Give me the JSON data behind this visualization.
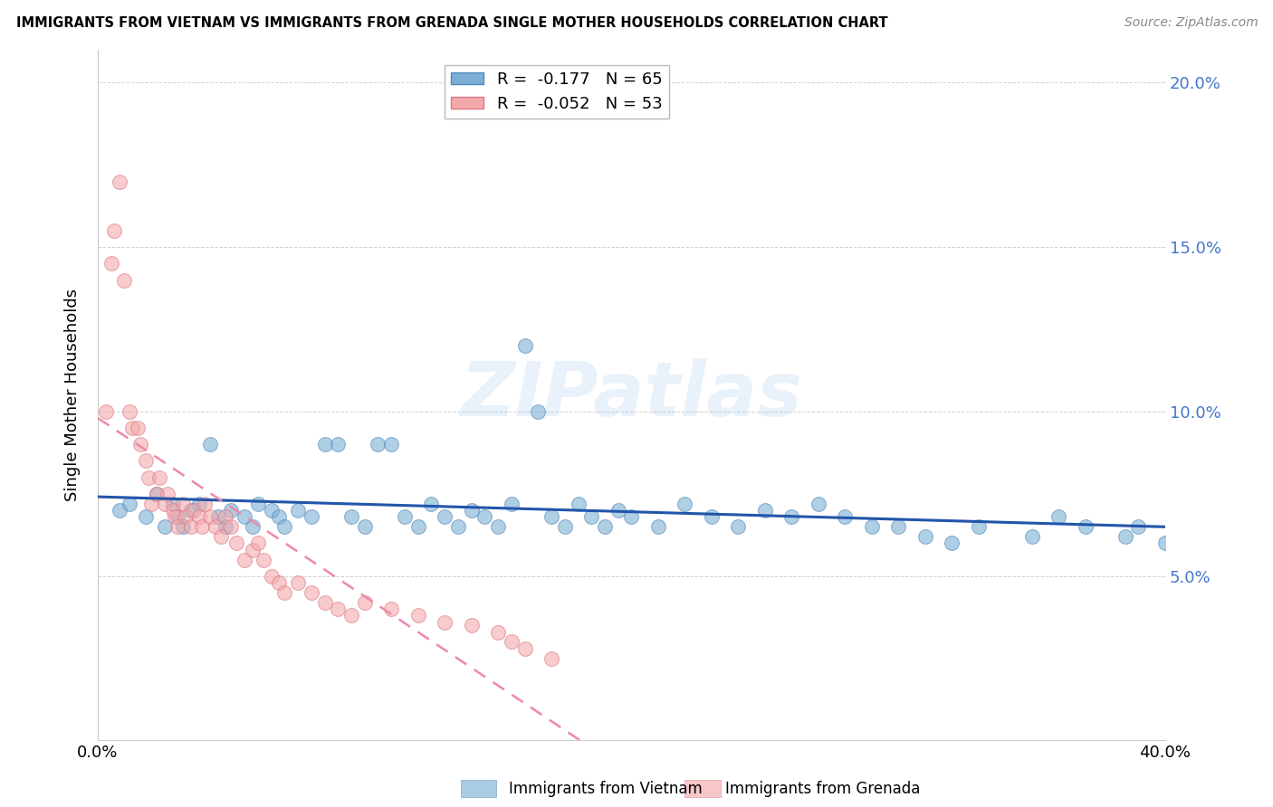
{
  "title": "IMMIGRANTS FROM VIETNAM VS IMMIGRANTS FROM GRENADA SINGLE MOTHER HOUSEHOLDS CORRELATION CHART",
  "source": "Source: ZipAtlas.com",
  "ylabel": "Single Mother Households",
  "y_ticks": [
    0.0,
    0.05,
    0.1,
    0.15,
    0.2
  ],
  "y_tick_labels_right": [
    "",
    "5.0%",
    "10.0%",
    "15.0%",
    "20.0%"
  ],
  "x_lim": [
    0.0,
    0.4
  ],
  "y_lim": [
    0.0,
    0.21
  ],
  "x_ticks": [
    0.0,
    0.1,
    0.2,
    0.3,
    0.4
  ],
  "x_tick_labels": [
    "0.0%",
    "",
    "",
    "",
    "40.0%"
  ],
  "vietnam_color": "#7BAFD4",
  "vietnam_edge_color": "#5588BB",
  "grenada_color": "#F4AAAA",
  "grenada_edge_color": "#DD7788",
  "vietnam_line_color": "#2255AA",
  "grenada_line_color": "#EE88AA",
  "vietnam_R": -0.177,
  "vietnam_N": 65,
  "grenada_R": -0.052,
  "grenada_N": 53,
  "legend_label_vietnam": "Immigrants from Vietnam",
  "legend_label_grenada": "Immigrants from Grenada",
  "watermark": "ZIPatlas",
  "grid_color": "#CCCCCC",
  "vietnam_x": [
    0.008,
    0.012,
    0.018,
    0.022,
    0.025,
    0.028,
    0.03,
    0.032,
    0.035,
    0.038,
    0.042,
    0.045,
    0.048,
    0.05,
    0.055,
    0.058,
    0.06,
    0.065,
    0.068,
    0.07,
    0.075,
    0.08,
    0.085,
    0.09,
    0.095,
    0.1,
    0.105,
    0.11,
    0.115,
    0.12,
    0.125,
    0.13,
    0.135,
    0.14,
    0.145,
    0.15,
    0.155,
    0.16,
    0.165,
    0.17,
    0.175,
    0.18,
    0.185,
    0.19,
    0.195,
    0.2,
    0.21,
    0.22,
    0.23,
    0.24,
    0.25,
    0.26,
    0.27,
    0.28,
    0.29,
    0.3,
    0.31,
    0.32,
    0.33,
    0.35,
    0.36,
    0.37,
    0.385,
    0.39,
    0.4
  ],
  "vietnam_y": [
    0.07,
    0.072,
    0.068,
    0.075,
    0.065,
    0.072,
    0.068,
    0.065,
    0.07,
    0.072,
    0.09,
    0.068,
    0.065,
    0.07,
    0.068,
    0.065,
    0.072,
    0.07,
    0.068,
    0.065,
    0.07,
    0.068,
    0.09,
    0.09,
    0.068,
    0.065,
    0.09,
    0.09,
    0.068,
    0.065,
    0.072,
    0.068,
    0.065,
    0.07,
    0.068,
    0.065,
    0.072,
    0.12,
    0.1,
    0.068,
    0.065,
    0.072,
    0.068,
    0.065,
    0.07,
    0.068,
    0.065,
    0.072,
    0.068,
    0.065,
    0.07,
    0.068,
    0.072,
    0.068,
    0.065,
    0.065,
    0.062,
    0.06,
    0.065,
    0.062,
    0.068,
    0.065,
    0.062,
    0.065,
    0.06
  ],
  "grenada_x": [
    0.003,
    0.005,
    0.006,
    0.008,
    0.01,
    0.012,
    0.013,
    0.015,
    0.016,
    0.018,
    0.019,
    0.02,
    0.022,
    0.023,
    0.025,
    0.026,
    0.028,
    0.029,
    0.03,
    0.032,
    0.033,
    0.035,
    0.036,
    0.038,
    0.039,
    0.04,
    0.042,
    0.044,
    0.046,
    0.048,
    0.05,
    0.052,
    0.055,
    0.058,
    0.06,
    0.062,
    0.065,
    0.068,
    0.07,
    0.075,
    0.08,
    0.085,
    0.09,
    0.095,
    0.1,
    0.11,
    0.12,
    0.13,
    0.14,
    0.15,
    0.155,
    0.16,
    0.17
  ],
  "grenada_y": [
    0.1,
    0.145,
    0.155,
    0.17,
    0.14,
    0.1,
    0.095,
    0.095,
    0.09,
    0.085,
    0.08,
    0.072,
    0.075,
    0.08,
    0.072,
    0.075,
    0.07,
    0.068,
    0.065,
    0.072,
    0.068,
    0.065,
    0.07,
    0.068,
    0.065,
    0.072,
    0.068,
    0.065,
    0.062,
    0.068,
    0.065,
    0.06,
    0.055,
    0.058,
    0.06,
    0.055,
    0.05,
    0.048,
    0.045,
    0.048,
    0.045,
    0.042,
    0.04,
    0.038,
    0.042,
    0.04,
    0.038,
    0.036,
    0.035,
    0.033,
    0.03,
    0.028,
    0.025
  ]
}
